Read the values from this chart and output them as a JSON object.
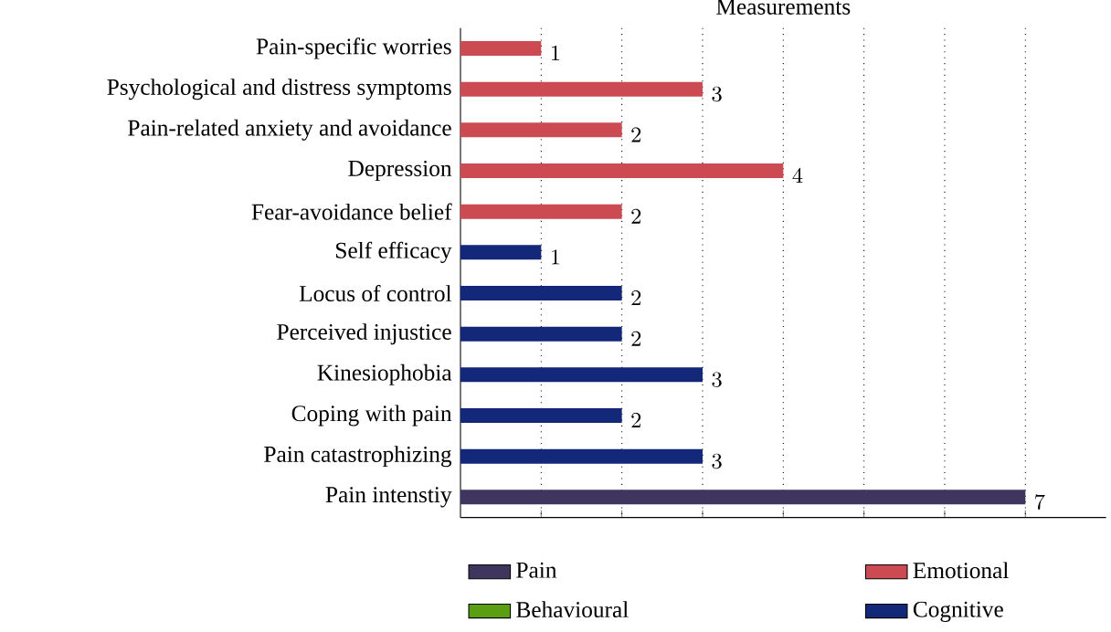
{
  "chart_data": {
    "type": "bar",
    "orientation": "horizontal",
    "title": "Measurements",
    "categories": [
      "Pain-specific worries",
      "Psychological and distress symptoms",
      "Pain-related anxiety and avoidance",
      "Depression",
      "Fear-avoidance belief",
      "Self efficacy",
      "Locus of control",
      "Perceived injustice",
      "Kinesiophobia",
      "Coping with pain",
      "Pain catastrophizing",
      "Pain intenstiy"
    ],
    "series": [
      {
        "name": "Pain",
        "color": "#3f3660",
        "values": [
          null,
          null,
          null,
          null,
          null,
          null,
          null,
          null,
          null,
          null,
          null,
          7
        ]
      },
      {
        "name": "Emotional",
        "color": "#cc4b52",
        "values": [
          1,
          3,
          2,
          4,
          2,
          null,
          null,
          null,
          null,
          null,
          null,
          null
        ]
      },
      {
        "name": "Behavioural",
        "color": "#5a9e12",
        "values": [
          null,
          null,
          null,
          null,
          null,
          null,
          null,
          null,
          null,
          null,
          null,
          null
        ]
      },
      {
        "name": "Cognitive",
        "color": "#14287a",
        "values": [
          null,
          null,
          null,
          null,
          null,
          1,
          2,
          2,
          3,
          2,
          3,
          null
        ]
      }
    ],
    "xlim": [
      0,
      8
    ],
    "xticks": [
      {
        "value": 1,
        "label": null
      },
      {
        "value": 2,
        "label": null
      },
      {
        "value": 3,
        "label": null
      },
      {
        "value": 4,
        "label": null
      },
      {
        "value": 5,
        "label": null
      },
      {
        "value": 6,
        "label": null
      },
      {
        "value": 7,
        "label": null
      }
    ],
    "data_labels": true,
    "grid": "x",
    "legend": "bottom"
  }
}
